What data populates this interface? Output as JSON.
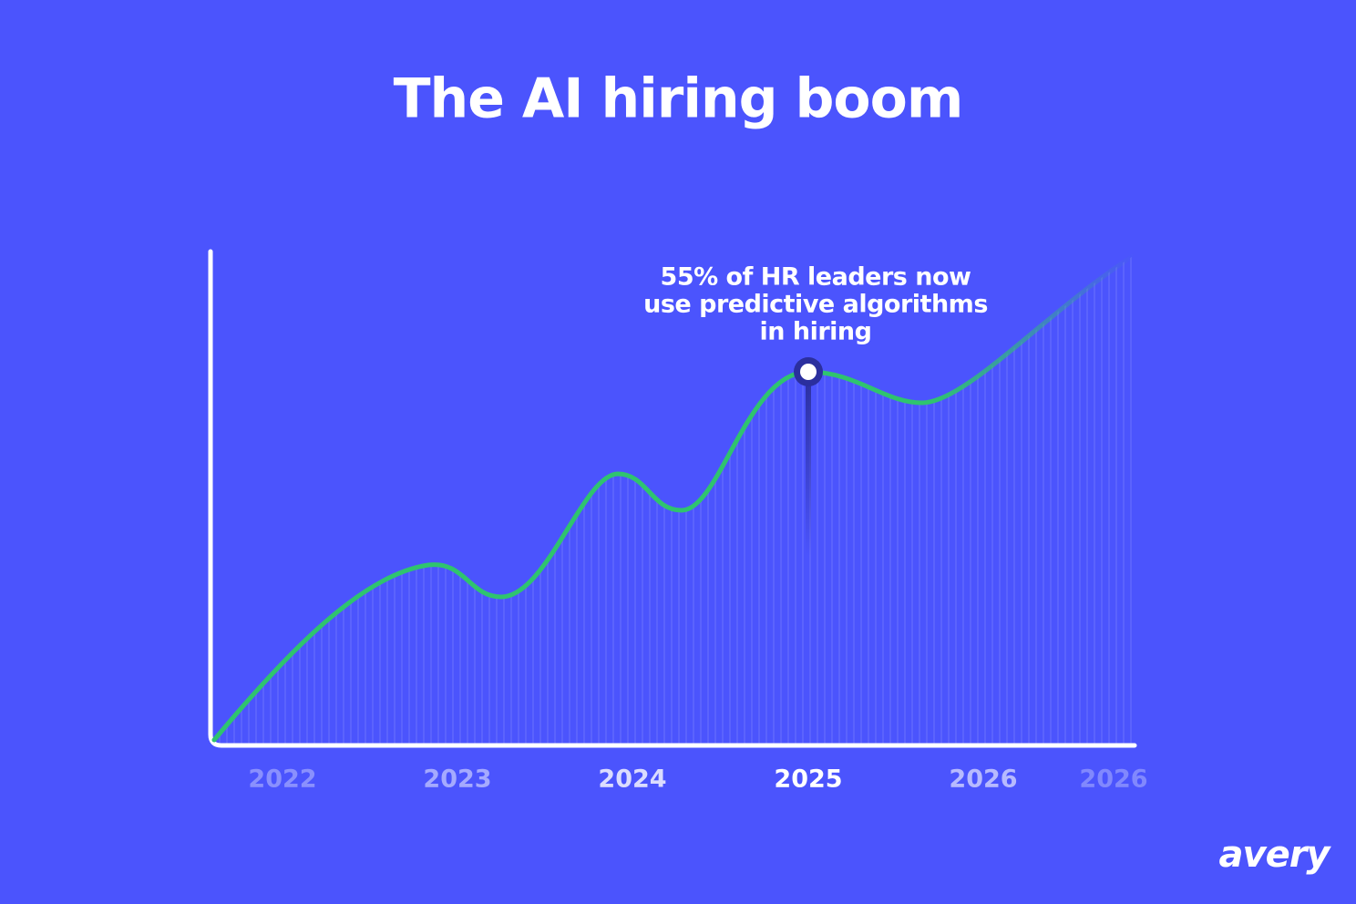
{
  "chart_data": {
    "type": "line",
    "title": "The AI hiring boom",
    "annotation": [
      "55% of HR leaders now",
      "use predictive algorithms",
      "in hiring"
    ],
    "categories": [
      "2022",
      "2023",
      "2024",
      "2025",
      "2026",
      "2026"
    ],
    "color": "#2fc46e",
    "brand": "avery"
  }
}
